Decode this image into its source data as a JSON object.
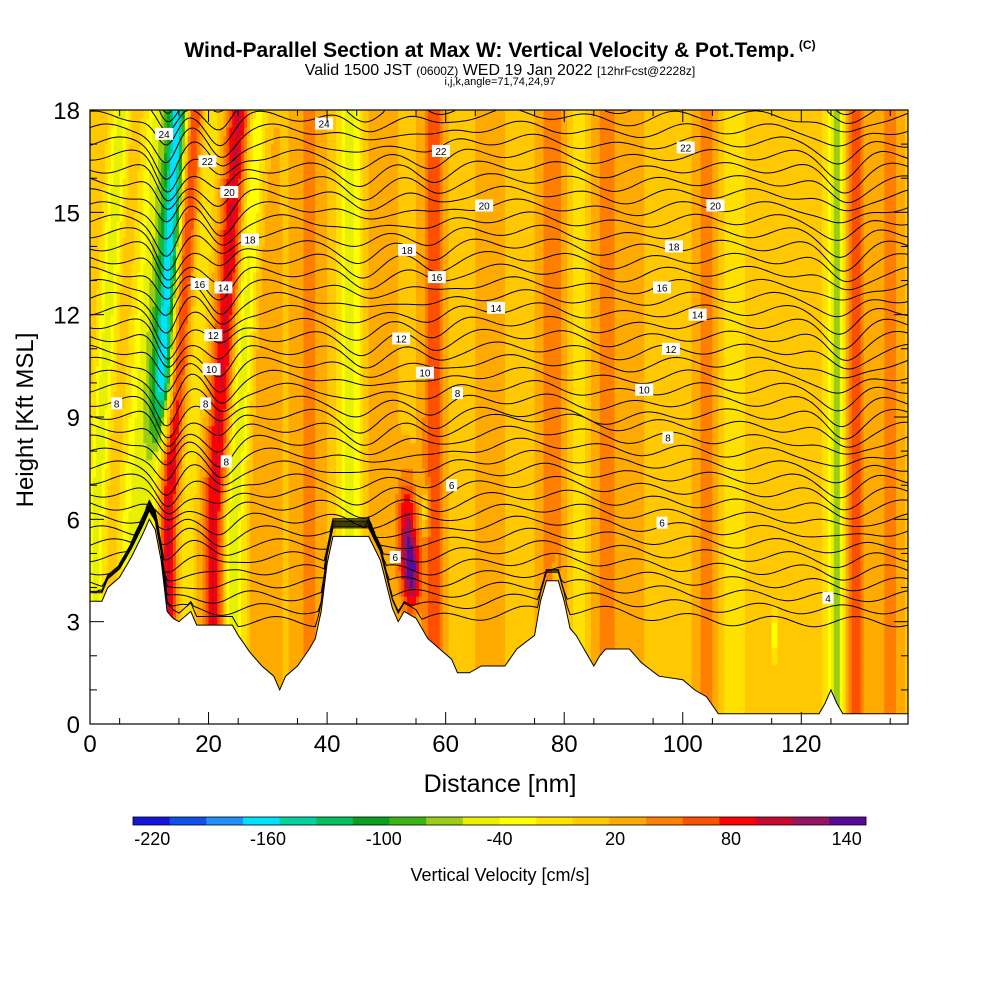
{
  "chart_data": {
    "type": "heatmap",
    "title": "Wind-Parallel Section at Max W: Vertical Velocity & Pot.Temp.",
    "title_mark": "(C)",
    "subtitle": {
      "valid": "Valid 1500 JST",
      "utc": "(0600Z)",
      "date": "WED 19 Jan 2022",
      "fcst": "[12hrFcst@2228z]"
    },
    "params": "i,j,k,angle=71,74,24,97",
    "xlabel": "Distance [nm]",
    "ylabel": "Height [Kft MSL]",
    "xlim": [
      0,
      138
    ],
    "ylim": [
      0,
      18
    ],
    "x_ticks": [
      "0",
      "20",
      "40",
      "60",
      "80",
      "100",
      "120"
    ],
    "y_ticks": [
      "0",
      "3",
      "6",
      "9",
      "12",
      "15",
      "18"
    ],
    "grid": false,
    "colorbar": {
      "label": "Vertical Velocity [cm/s]",
      "tick_labels": [
        "-220",
        "-160",
        "-100",
        "-40",
        "20",
        "80",
        "140"
      ],
      "levels": [
        -230,
        -210,
        -190,
        -170,
        -150,
        -130,
        -110,
        -90,
        -70,
        -50,
        -30,
        -10,
        10,
        30,
        50,
        70,
        90,
        110,
        130,
        150
      ],
      "colors": [
        "#1414dc",
        "#0f50ee",
        "#1e90ff",
        "#00e0ff",
        "#00d3a0",
        "#00c060",
        "#0aa020",
        "#3cb414",
        "#9acd14",
        "#e6f000",
        "#ffff00",
        "#ffe100",
        "#ffc800",
        "#ffaa00",
        "#ff7f00",
        "#ff5000",
        "#ff0000",
        "#c80a32",
        "#961464",
        "#5a0a96"
      ]
    },
    "velocity_bands": [
      {
        "x": 1,
        "halfwidth": 1.5,
        "w": -60
      },
      {
        "x": 4,
        "halfwidth": 2.0,
        "w": 10
      },
      {
        "x": 8,
        "halfwidth": 3.0,
        "w": -60
      },
      {
        "x": 11,
        "halfwidth": 1.8,
        "w": -190
      },
      {
        "x": 13,
        "halfwidth": 2.0,
        "w": 110
      },
      {
        "x": 16,
        "halfwidth": 2.0,
        "w": -30
      },
      {
        "x": 21,
        "halfwidth": 2.2,
        "w": 100
      },
      {
        "x": 24,
        "halfwidth": 2.0,
        "w": -80
      },
      {
        "x": 29,
        "halfwidth": 3.0,
        "w": 30
      },
      {
        "x": 37,
        "halfwidth": 3.0,
        "w": 35
      },
      {
        "x": 44,
        "halfwidth": 1.8,
        "w": -60
      },
      {
        "x": 49,
        "halfwidth": 3.0,
        "w": 30
      },
      {
        "x": 58,
        "halfwidth": 2.2,
        "w": 60
      },
      {
        "x": 63,
        "halfwidth": 3.0,
        "w": -10
      },
      {
        "x": 67,
        "halfwidth": 3.0,
        "w": 30
      },
      {
        "x": 78,
        "halfwidth": 2.5,
        "w": 50
      },
      {
        "x": 82,
        "halfwidth": 2.0,
        "w": -20
      },
      {
        "x": 87,
        "halfwidth": 2.5,
        "w": 40
      },
      {
        "x": 92,
        "halfwidth": 3.0,
        "w": 15
      },
      {
        "x": 104,
        "halfwidth": 2.5,
        "w": 40
      },
      {
        "x": 108,
        "halfwidth": 2.5,
        "w": -20
      },
      {
        "x": 126,
        "halfwidth": 1.5,
        "w": -80
      },
      {
        "x": 129,
        "halfwidth": 2.0,
        "w": 60
      },
      {
        "x": 135,
        "halfwidth": 2.5,
        "w": 40
      }
    ],
    "velocity_cores": [
      {
        "x": 53.5,
        "y": 5.5,
        "rx": 1.5,
        "ry": 1.8,
        "w": 110
      },
      {
        "x": 54.5,
        "y": 4.4,
        "rx": 1.3,
        "ry": 1.0,
        "w": 90
      },
      {
        "x": 56.5,
        "y": 6.3,
        "rx": 0.7,
        "ry": 0.6,
        "w": -60
      },
      {
        "x": 115.5,
        "y": 2.6,
        "rx": 0.5,
        "ry": 0.6,
        "w": -60
      },
      {
        "x": 78.5,
        "y": 4.2,
        "rx": 0.5,
        "ry": 0.6,
        "w": -60
      }
    ],
    "terrain": [
      [
        0,
        3.6
      ],
      [
        2,
        3.6
      ],
      [
        3,
        4.0
      ],
      [
        5,
        4.3
      ],
      [
        7,
        4.9
      ],
      [
        9,
        5.6
      ],
      [
        10,
        6.0
      ],
      [
        11,
        5.7
      ],
      [
        12,
        4.8
      ],
      [
        13,
        3.3
      ],
      [
        14,
        3.1
      ],
      [
        15,
        3.0
      ],
      [
        17,
        3.3
      ],
      [
        18,
        2.9
      ],
      [
        24,
        2.9
      ],
      [
        25,
        2.6
      ],
      [
        27,
        2.1
      ],
      [
        29,
        1.7
      ],
      [
        31,
        1.4
      ],
      [
        32,
        1.0
      ],
      [
        33,
        1.4
      ],
      [
        35,
        1.7
      ],
      [
        37,
        2.2
      ],
      [
        38,
        2.5
      ],
      [
        39,
        3.3
      ],
      [
        40,
        4.7
      ],
      [
        41,
        5.5
      ],
      [
        47,
        5.5
      ],
      [
        49,
        4.8
      ],
      [
        50,
        4.1
      ],
      [
        51,
        3.4
      ],
      [
        52,
        3.0
      ],
      [
        53,
        3.3
      ],
      [
        55,
        3.1
      ],
      [
        57,
        2.5
      ],
      [
        59,
        2.2
      ],
      [
        61,
        1.9
      ],
      [
        62,
        1.5
      ],
      [
        64,
        1.5
      ],
      [
        66,
        1.7
      ],
      [
        70,
        1.7
      ],
      [
        72,
        2.2
      ],
      [
        75,
        2.6
      ],
      [
        76,
        3.6
      ],
      [
        77,
        4.2
      ],
      [
        79,
        4.2
      ],
      [
        80,
        3.6
      ],
      [
        81,
        2.8
      ],
      [
        82,
        2.6
      ],
      [
        84,
        2.0
      ],
      [
        85,
        1.7
      ],
      [
        86,
        2.0
      ],
      [
        87,
        2.2
      ],
      [
        91,
        2.2
      ],
      [
        93,
        1.8
      ],
      [
        96,
        1.4
      ],
      [
        100,
        1.3
      ],
      [
        102,
        1.0
      ],
      [
        104,
        0.8
      ],
      [
        106,
        0.3
      ],
      [
        123,
        0.3
      ],
      [
        124,
        0.6
      ],
      [
        125,
        1.0
      ],
      [
        126,
        0.6
      ],
      [
        127,
        0.3
      ],
      [
        138,
        0.3
      ]
    ],
    "theta_labels": [
      {
        "text": "24",
        "x": 12.5,
        "y": 17.3
      },
      {
        "text": "24",
        "x": 39.5,
        "y": 17.6
      },
      {
        "text": "22",
        "x": 19.8,
        "y": 16.5
      },
      {
        "text": "22",
        "x": 59.2,
        "y": 16.8
      },
      {
        "text": "22",
        "x": 100.5,
        "y": 16.9
      },
      {
        "text": "20",
        "x": 23.5,
        "y": 15.6
      },
      {
        "text": "20",
        "x": 66.5,
        "y": 15.2
      },
      {
        "text": "20",
        "x": 105.5,
        "y": 15.2
      },
      {
        "text": "18",
        "x": 27.0,
        "y": 14.2
      },
      {
        "text": "18",
        "x": 53.5,
        "y": 13.9
      },
      {
        "text": "18",
        "x": 98.5,
        "y": 14.0
      },
      {
        "text": "16",
        "x": 18.5,
        "y": 12.9
      },
      {
        "text": "16",
        "x": 58.5,
        "y": 13.1
      },
      {
        "text": "16",
        "x": 96.5,
        "y": 12.8
      },
      {
        "text": "14",
        "x": 22.5,
        "y": 12.8
      },
      {
        "text": "14",
        "x": 68.5,
        "y": 12.2
      },
      {
        "text": "14",
        "x": 102.5,
        "y": 12.0
      },
      {
        "text": "12",
        "x": 20.8,
        "y": 11.4
      },
      {
        "text": "12",
        "x": 52.5,
        "y": 11.3
      },
      {
        "text": "12",
        "x": 98.0,
        "y": 11.0
      },
      {
        "text": "10",
        "x": 20.5,
        "y": 10.4
      },
      {
        "text": "10",
        "x": 56.5,
        "y": 10.3
      },
      {
        "text": "10",
        "x": 93.5,
        "y": 9.8
      },
      {
        "text": "8",
        "x": 4.5,
        "y": 9.4
      },
      {
        "text": "8",
        "x": 19.5,
        "y": 9.4
      },
      {
        "text": "8",
        "x": 62.0,
        "y": 9.7
      },
      {
        "text": "8",
        "x": 97.5,
        "y": 8.4
      },
      {
        "text": "8",
        "x": 23.0,
        "y": 7.7
      },
      {
        "text": "6",
        "x": 61.0,
        "y": 7.0
      },
      {
        "text": "6",
        "x": 96.5,
        "y": 5.9
      },
      {
        "text": "6",
        "x": 51.5,
        "y": 4.9
      },
      {
        "text": "4",
        "x": 124.5,
        "y": 3.7
      }
    ]
  }
}
